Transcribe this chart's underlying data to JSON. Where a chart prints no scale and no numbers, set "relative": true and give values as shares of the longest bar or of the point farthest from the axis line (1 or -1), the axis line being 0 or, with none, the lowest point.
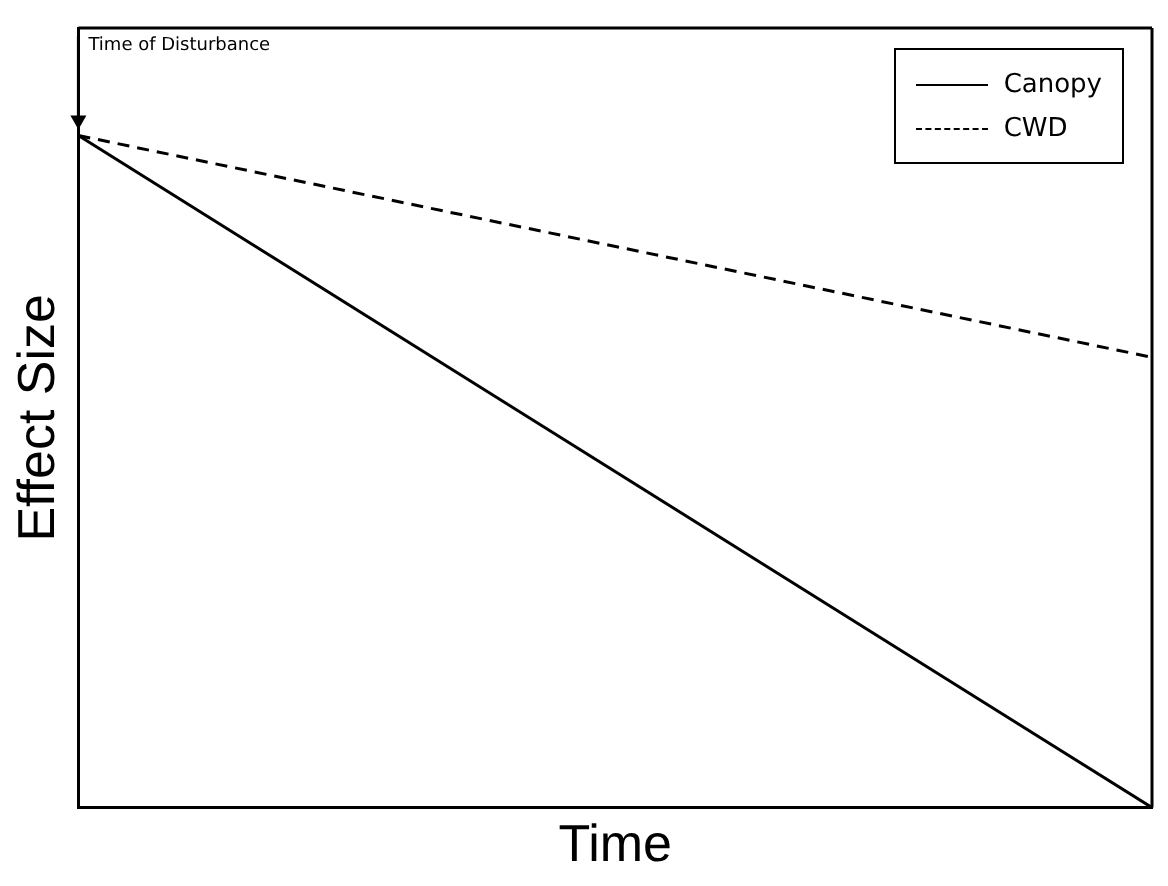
{
  "chart_data": {
    "type": "line",
    "relative": true,
    "xlabel": "Time",
    "ylabel": "Effect Size",
    "categories": [
      null,
      null
    ],
    "series": [
      {
        "name": "Canopy",
        "color": "#000000",
        "values": [
          1,
          0
        ],
        "line_style": "solid"
      },
      {
        "name": "CWD",
        "color": "#000000",
        "values": [
          1,
          0.67
        ],
        "line_style": "dashed"
      }
    ],
    "annotations": [
      "Time of Disturbance"
    ],
    "legend": "top right",
    "grid": false,
    "marker": "none"
  }
}
